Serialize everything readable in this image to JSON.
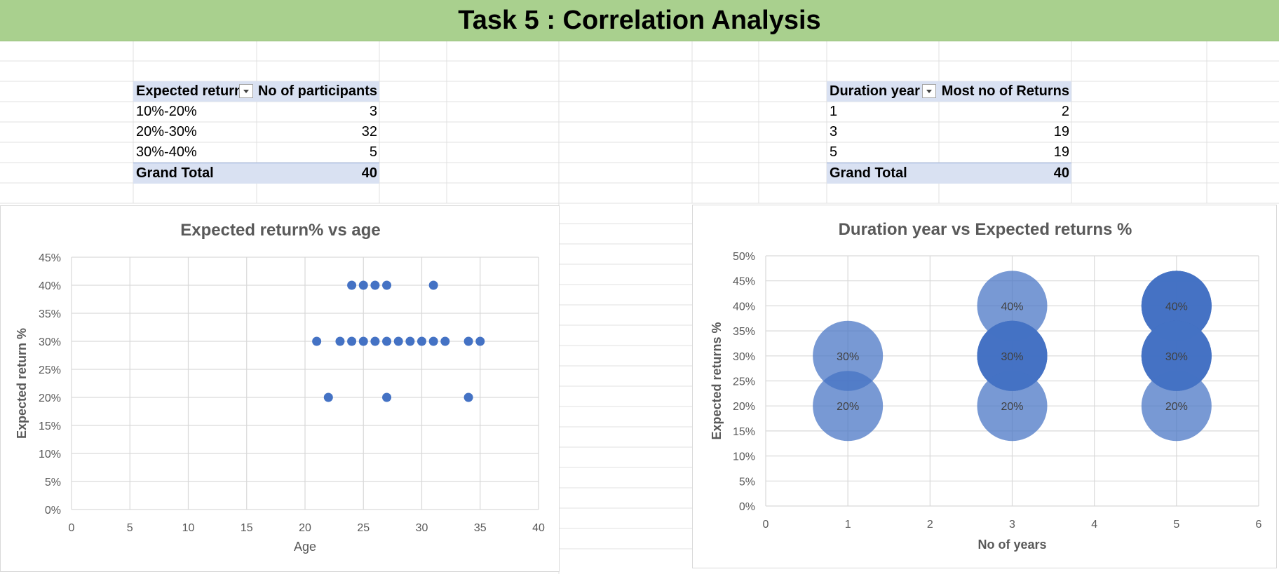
{
  "banner": {
    "title": "Task 5 : Correlation Analysis"
  },
  "pivot_left": {
    "headers": [
      "Expected return",
      "No of participants"
    ],
    "rows": [
      {
        "label": "10%-20%",
        "value": "3"
      },
      {
        "label": "20%-30%",
        "value": "32"
      },
      {
        "label": "30%-40%",
        "value": "5"
      }
    ],
    "total": {
      "label": "Grand Total",
      "value": "40"
    }
  },
  "pivot_right": {
    "headers": [
      "Duration year",
      "Most no of Returns"
    ],
    "rows": [
      {
        "label": "1",
        "value": "2"
      },
      {
        "label": "3",
        "value": "19"
      },
      {
        "label": "5",
        "value": "19"
      }
    ],
    "total": {
      "label": "Grand Total",
      "value": "40"
    }
  },
  "colors": {
    "accent": "#4472c4",
    "banner": "#a9d08e",
    "pivot_header": "#d9e1f2",
    "grid": "#d9d9d9",
    "axis_text": "#595959"
  },
  "chart_data": [
    {
      "type": "scatter",
      "title": "Expected return% vs age",
      "xlabel": "Age",
      "ylabel": "Expected return %",
      "xlim": [
        0,
        40
      ],
      "ylim": [
        0,
        45
      ],
      "xticks": [
        0,
        5,
        10,
        15,
        20,
        25,
        30,
        35,
        40
      ],
      "yticks": [
        0,
        5,
        10,
        15,
        20,
        25,
        30,
        35,
        40,
        45
      ],
      "y_unit": "%",
      "grid": true,
      "series": [
        {
          "points": [
            [
              24,
              40
            ],
            [
              25,
              40
            ],
            [
              26,
              40
            ],
            [
              27,
              40
            ],
            [
              31,
              40
            ],
            [
              21,
              30
            ],
            [
              23,
              30
            ],
            [
              24,
              30
            ],
            [
              25,
              30
            ],
            [
              26,
              30
            ],
            [
              27,
              30
            ],
            [
              28,
              30
            ],
            [
              29,
              30
            ],
            [
              30,
              30
            ],
            [
              31,
              30
            ],
            [
              32,
              30
            ],
            [
              34,
              30
            ],
            [
              35,
              30
            ],
            [
              22,
              20
            ],
            [
              27,
              20
            ],
            [
              34,
              20
            ]
          ]
        }
      ]
    },
    {
      "type": "bubble",
      "title": "Duration year vs Expected returns %",
      "xlabel": "No of years",
      "ylabel": "Expected returns %",
      "xlim": [
        0,
        6
      ],
      "ylim": [
        0,
        50
      ],
      "xticks": [
        0,
        1,
        2,
        3,
        4,
        5,
        6
      ],
      "yticks": [
        0,
        5,
        10,
        15,
        20,
        25,
        30,
        35,
        40,
        45,
        50
      ],
      "y_unit": "%",
      "grid": true,
      "series": [
        {
          "points": [
            {
              "x": 1,
              "y": 30,
              "label": "30%",
              "stack": 1
            },
            {
              "x": 1,
              "y": 20,
              "label": "20%",
              "stack": 1
            },
            {
              "x": 3,
              "y": 40,
              "label": "40%",
              "stack": 1
            },
            {
              "x": 3,
              "y": 30,
              "label": "30%",
              "stack": 4
            },
            {
              "x": 3,
              "y": 20,
              "label": "20%",
              "stack": 1
            },
            {
              "x": 5,
              "y": 40,
              "label": "40%",
              "stack": 4
            },
            {
              "x": 5,
              "y": 30,
              "label": "30%",
              "stack": 4
            },
            {
              "x": 5,
              "y": 20,
              "label": "20%",
              "stack": 1
            }
          ]
        }
      ]
    }
  ]
}
